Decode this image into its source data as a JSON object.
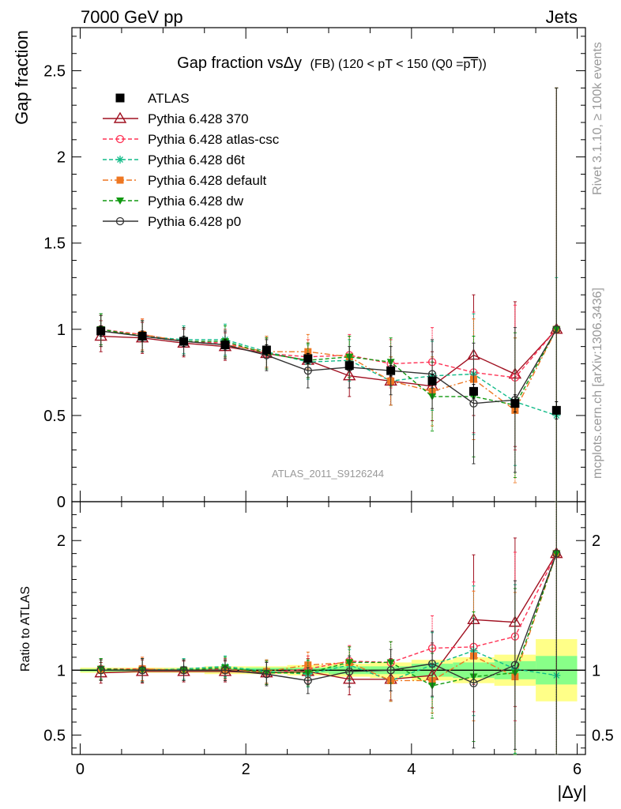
{
  "header": {
    "energy_label": "7000 GeV pp",
    "process_label": "Jets"
  },
  "side_text": {
    "rivet": "Rivet 3.1.10, ≥ 100k events",
    "mcplots": "mcplots.cern.ch [arXiv:1306.3436]"
  },
  "colors": {
    "atlas": "#000000",
    "p370": "#a01020",
    "atlas_csc": "#ff3355",
    "d6t": "#11bb88",
    "default": "#ee7722",
    "dw": "#119911",
    "p0": "#333333",
    "band_yellow": "#ffff88",
    "band_green": "#88ff88"
  },
  "chart_data": [
    {
      "type": "line",
      "panel": "main",
      "title": "Gap fraction vsΔy (FB) (120 < pT < 150 (Q0 =pT))",
      "title_parts": {
        "main": "Gap fraction vsΔy",
        "sub": "(FB) (120 < pT < 150 (Q0 =",
        "overline": "pT",
        "close": "))"
      },
      "ylabel": "Gap fraction",
      "watermark": "ATLAS_2011_S9126244",
      "xlim": [
        -0.1,
        6.1
      ],
      "ylim": [
        0,
        2.75
      ],
      "y_ticks": [
        0,
        0.5,
        1,
        1.5,
        2,
        2.5
      ],
      "y_tick_labels": [
        "0",
        "0.5",
        "1",
        "1.5",
        "2",
        "2.5"
      ],
      "legend_position": "top-left",
      "x": [
        0.25,
        0.75,
        1.25,
        1.75,
        2.25,
        2.75,
        3.25,
        3.75,
        4.25,
        4.75,
        5.25,
        5.75
      ],
      "series": [
        {
          "key": "atlas",
          "name": "ATLAS",
          "marker": "square",
          "line": "none",
          "values": [
            0.99,
            0.96,
            0.93,
            0.91,
            0.88,
            0.83,
            0.79,
            0.76,
            0.7,
            0.64,
            0.57,
            0.53
          ],
          "errors": [
            0.03,
            0.03,
            0.03,
            0.03,
            0.03,
            0.03,
            0.03,
            0.03,
            0.04,
            0.04,
            0.05,
            0.05
          ]
        },
        {
          "key": "p370",
          "name": "Pythia 6.428 370",
          "marker": "triangle-open",
          "line": "solid",
          "values": [
            0.96,
            0.95,
            0.92,
            0.9,
            0.86,
            0.82,
            0.73,
            0.7,
            0.67,
            0.85,
            0.74,
            1.0
          ],
          "errors": [
            0.09,
            0.09,
            0.08,
            0.08,
            0.09,
            0.1,
            0.12,
            0.14,
            0.2,
            0.35,
            0.42,
            1.4
          ]
        },
        {
          "key": "atlas_csc",
          "name": "Pythia 6.428 atlas-csc",
          "marker": "circle-open",
          "line": "dashed",
          "values": [
            1.0,
            0.97,
            0.93,
            0.92,
            0.86,
            0.84,
            0.85,
            0.8,
            0.81,
            0.75,
            0.72,
            1.0
          ],
          "errors": [
            0.09,
            0.09,
            0.08,
            0.08,
            0.09,
            0.1,
            0.12,
            0.14,
            0.2,
            0.35,
            0.42,
            1.4
          ]
        },
        {
          "key": "d6t",
          "name": "Pythia 6.428 d6t",
          "marker": "star",
          "line": "dashed",
          "values": [
            1.0,
            0.96,
            0.94,
            0.94,
            0.87,
            0.81,
            0.82,
            0.7,
            0.73,
            0.74,
            0.58,
            0.5
          ],
          "errors": [
            0.09,
            0.09,
            0.08,
            0.09,
            0.09,
            0.1,
            0.12,
            0.14,
            0.2,
            0.35,
            0.37,
            0.8
          ]
        },
        {
          "key": "default",
          "name": "Pythia 6.428 default",
          "marker": "square-filled",
          "line": "dashdot",
          "values": [
            0.99,
            0.97,
            0.93,
            0.91,
            0.87,
            0.87,
            0.84,
            0.7,
            0.64,
            0.71,
            0.53,
            1.0
          ],
          "errors": [
            0.09,
            0.09,
            0.08,
            0.08,
            0.09,
            0.1,
            0.12,
            0.14,
            0.2,
            0.35,
            0.42,
            1.4
          ]
        },
        {
          "key": "dw",
          "name": "Pythia 6.428 dw",
          "marker": "triangle-down-filled",
          "line": "dashed",
          "values": [
            1.0,
            0.96,
            0.93,
            0.93,
            0.86,
            0.82,
            0.84,
            0.81,
            0.61,
            0.61,
            0.56,
            1.0
          ],
          "errors": [
            0.09,
            0.09,
            0.08,
            0.09,
            0.09,
            0.1,
            0.12,
            0.14,
            0.2,
            0.35,
            0.42,
            1.4
          ]
        },
        {
          "key": "p0",
          "name": "Pythia 6.428 p0",
          "marker": "circle-open",
          "line": "solid",
          "values": [
            0.99,
            0.96,
            0.93,
            0.91,
            0.85,
            0.76,
            0.78,
            0.76,
            0.74,
            0.57,
            0.59,
            1.0
          ],
          "errors": [
            0.09,
            0.09,
            0.08,
            0.08,
            0.09,
            0.1,
            0.12,
            0.14,
            0.2,
            0.35,
            0.42,
            1.4
          ]
        }
      ]
    },
    {
      "type": "line",
      "panel": "ratio",
      "ylabel": "Ratio to ATLAS",
      "xlabel": "|Δy|",
      "xlim": [
        -0.1,
        6.1
      ],
      "ylim": [
        0.35,
        2.3
      ],
      "y_ticks": [
        0.5,
        1,
        2
      ],
      "y_tick_labels": [
        "0.5",
        "1",
        "2"
      ],
      "x_ticks": [
        0,
        2,
        4,
        6
      ],
      "x_tick_labels": [
        "0",
        "2",
        "4",
        "6"
      ],
      "x_edges": [
        0,
        0.5,
        1,
        1.5,
        2,
        2.5,
        3,
        3.5,
        4,
        4.5,
        5,
        5.5,
        6
      ],
      "band_outer": [
        0.02,
        0.02,
        0.02,
        0.03,
        0.03,
        0.04,
        0.05,
        0.06,
        0.08,
        0.1,
        0.12,
        0.24
      ],
      "band_inner": [
        0.01,
        0.01,
        0.01,
        0.015,
        0.02,
        0.02,
        0.03,
        0.03,
        0.05,
        0.06,
        0.07,
        0.11
      ],
      "x": [
        0.25,
        0.75,
        1.25,
        1.75,
        2.25,
        2.75,
        3.25,
        3.75,
        4.25,
        4.75,
        5.25,
        5.75
      ],
      "series": [
        {
          "key": "p370",
          "values": [
            0.98,
            0.99,
            0.99,
            0.99,
            0.98,
            0.99,
            0.93,
            0.93,
            0.96,
            1.39,
            1.37,
            1.9
          ],
          "errors": [
            0.08,
            0.09,
            0.08,
            0.08,
            0.09,
            0.1,
            0.12,
            0.16,
            0.25,
            0.5,
            0.65,
            2.7
          ]
        },
        {
          "key": "atlas_csc",
          "values": [
            1.01,
            1.01,
            1.0,
            1.01,
            0.98,
            1.01,
            1.07,
            1.06,
            1.17,
            1.18,
            1.26,
            1.9
          ],
          "errors": [
            0.08,
            0.09,
            0.08,
            0.08,
            0.09,
            0.1,
            0.12,
            0.16,
            0.25,
            0.5,
            0.65,
            2.7
          ]
        },
        {
          "key": "d6t",
          "values": [
            1.01,
            1.0,
            1.01,
            1.03,
            0.99,
            0.97,
            1.04,
            0.92,
            1.04,
            1.15,
            1.01,
            0.96
          ],
          "errors": [
            0.08,
            0.09,
            0.08,
            0.08,
            0.09,
            0.1,
            0.12,
            0.16,
            0.25,
            0.5,
            0.65,
            1.5
          ]
        },
        {
          "key": "default",
          "values": [
            1.0,
            1.01,
            1.0,
            1.0,
            0.99,
            1.04,
            1.06,
            0.92,
            0.92,
            1.11,
            0.95,
            1.9
          ],
          "errors": [
            0.08,
            0.09,
            0.08,
            0.08,
            0.09,
            0.1,
            0.12,
            0.16,
            0.25,
            0.5,
            0.65,
            2.7
          ]
        },
        {
          "key": "dw",
          "values": [
            1.01,
            1.0,
            1.0,
            1.02,
            0.98,
            0.98,
            1.06,
            1.06,
            0.88,
            0.95,
            0.98,
            1.9
          ],
          "errors": [
            0.08,
            0.09,
            0.08,
            0.08,
            0.09,
            0.1,
            0.12,
            0.16,
            0.25,
            0.5,
            0.65,
            2.7
          ]
        },
        {
          "key": "p0",
          "values": [
            1.0,
            1.0,
            1.0,
            1.0,
            0.97,
            0.92,
            0.99,
            1.0,
            1.05,
            0.9,
            1.04,
            1.9
          ],
          "errors": [
            0.08,
            0.09,
            0.08,
            0.08,
            0.09,
            0.1,
            0.12,
            0.16,
            0.25,
            0.5,
            0.65,
            2.7
          ]
        }
      ]
    }
  ]
}
